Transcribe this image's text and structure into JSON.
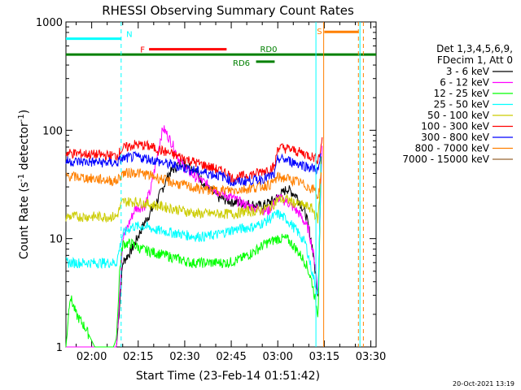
{
  "chart_data": {
    "type": "line",
    "title": "RHESSI Observing Summary Count Rates",
    "xlabel": "Start Time (23-Feb-14 01:51:42)",
    "ylabel_main": "Count Rate (s",
    "ylabel_sup1": "-1",
    "ylabel_mid": " detector",
    "ylabel_sup2": "-1",
    "ylabel_end": ")",
    "x_unit": "minutes since 00:00 UT",
    "xlim": [
      111.7,
      211.7
    ],
    "ylim": [
      1,
      1000
    ],
    "yscale": "log",
    "xticks": [
      {
        "label": "02:00",
        "value": 120
      },
      {
        "label": "02:15",
        "value": 135
      },
      {
        "label": "02:30",
        "value": 150
      },
      {
        "label": "02:45",
        "value": 165
      },
      {
        "label": "03:00",
        "value": 180
      },
      {
        "label": "03:15",
        "value": 195
      },
      {
        "label": "03:30",
        "value": 210
      }
    ],
    "yticks": [
      {
        "label": "1",
        "value": 1
      },
      {
        "label": "10",
        "value": 10
      },
      {
        "label": "100",
        "value": 100
      },
      {
        "label": "1000",
        "value": 1000
      }
    ],
    "legend_title_1": "Det 1,3,4,5,6,9,",
    "legend_title_2": "FDecim 1, Att 0",
    "legend_position": "right",
    "series": [
      {
        "name": "3 - 6 keV",
        "color": "#000000",
        "x": [
          111.7,
          128,
          130,
          133,
          137,
          141,
          145,
          149,
          153,
          157,
          161,
          165,
          170,
          175,
          180,
          183,
          186,
          189,
          191,
          193,
          194
        ],
        "y": [
          1,
          1,
          6,
          8,
          14,
          22,
          40,
          52,
          44,
          30,
          24,
          22,
          21,
          20,
          24,
          29,
          25,
          17,
          9,
          3,
          60
        ]
      },
      {
        "name": "6 - 12 keV",
        "color": "#ff00ff",
        "x": [
          111.7,
          128,
          130,
          134,
          137,
          139,
          141,
          142,
          143,
          144,
          146,
          148,
          150,
          153,
          157,
          161,
          165,
          169,
          173,
          177,
          180,
          183,
          187,
          190,
          192,
          193,
          194,
          194.5
        ],
        "y": [
          1,
          1,
          10,
          19,
          20,
          28,
          55,
          80,
          105,
          95,
          75,
          55,
          45,
          38,
          32,
          27,
          24,
          21,
          19,
          18,
          24,
          22,
          17,
          12,
          6,
          3,
          40,
          110
        ]
      },
      {
        "name": "12 - 25 keV",
        "color": "#00ff00",
        "x": [
          111.7,
          113,
          115,
          118,
          121,
          124,
          127,
          128,
          129,
          130,
          133,
          136,
          140,
          144,
          148,
          152,
          156,
          160,
          164,
          168,
          172,
          176,
          180,
          183,
          186,
          189,
          191,
          193,
          194
        ],
        "y": [
          1,
          3,
          2,
          1.5,
          1,
          1,
          1,
          1.2,
          5,
          9,
          9,
          8,
          7.5,
          7,
          6.5,
          6,
          6,
          6,
          6,
          6.5,
          7.5,
          9,
          10,
          10,
          8,
          6,
          4,
          2,
          60
        ]
      },
      {
        "name": "25 - 50 keV",
        "color": "#00ffff",
        "x": [
          111.7,
          128,
          130,
          133,
          137,
          141,
          145,
          149,
          153,
          157,
          161,
          165,
          169,
          173,
          177,
          180,
          183,
          186,
          189,
          191,
          193,
          194
        ],
        "y": [
          6,
          6,
          11,
          13,
          13,
          12,
          11.5,
          11,
          10.5,
          10.5,
          11,
          12,
          12.5,
          13,
          15,
          17,
          15,
          12,
          9,
          5,
          3,
          50
        ]
      },
      {
        "name": "50 - 100 keV",
        "color": "#cccc00",
        "x": [
          111.7,
          128,
          130,
          134,
          138,
          142,
          146,
          150,
          154,
          158,
          162,
          166,
          170,
          174,
          178,
          180,
          183,
          186,
          189,
          191,
          193,
          194
        ],
        "y": [
          16,
          16,
          22,
          22,
          21,
          20,
          19,
          18,
          17,
          17,
          17,
          17,
          18,
          18,
          20,
          23,
          23,
          21,
          20,
          19,
          15,
          45
        ]
      },
      {
        "name": "100 - 300 keV",
        "color": "#ff0000",
        "x": [
          111.7,
          128,
          130,
          134,
          138,
          142,
          146,
          150,
          154,
          158,
          162,
          164,
          165,
          166,
          169,
          173,
          177,
          179,
          180,
          183,
          187,
          190,
          192,
          193,
          194,
          194.5
        ],
        "y": [
          62,
          58,
          68,
          74,
          72,
          66,
          60,
          55,
          50,
          46,
          42,
          40,
          36,
          36,
          38,
          40,
          44,
          46,
          70,
          68,
          63,
          59,
          56,
          54,
          70,
          100
        ]
      },
      {
        "name": "300 - 800 keV",
        "color": "#0000ff",
        "x": [
          111.7,
          128,
          130,
          134,
          138,
          142,
          146,
          150,
          154,
          158,
          162,
          164,
          165,
          166,
          169,
          173,
          177,
          179,
          180,
          183,
          187,
          190,
          192,
          193,
          194
        ],
        "y": [
          52,
          50,
          55,
          57,
          55,
          51,
          48,
          45,
          42,
          40,
          38,
          36,
          33,
          33,
          34,
          35,
          37,
          39,
          55,
          53,
          49,
          46,
          44,
          42,
          60
        ]
      },
      {
        "name": "800 - 7000 keV",
        "color": "#ff8000",
        "x": [
          111.7,
          128,
          130,
          134,
          138,
          142,
          146,
          150,
          154,
          158,
          162,
          166,
          170,
          174,
          178,
          180,
          183,
          187,
          190,
          192,
          193,
          194
        ],
        "y": [
          38,
          34,
          40,
          41,
          39,
          36,
          33,
          31,
          29,
          28,
          28,
          28,
          29,
          30,
          32,
          37,
          36,
          33,
          30,
          28,
          24,
          40
        ]
      },
      {
        "name": "7000 - 15000 keV",
        "color": "#996633",
        "x": [],
        "y": []
      }
    ],
    "flags": [
      {
        "label": "N",
        "color": "#00ffff",
        "x0": 111.7,
        "x1": 129.5,
        "y": 700
      },
      {
        "label": "F",
        "color": "#ff0000",
        "x0": 138.5,
        "x1": 163.5,
        "y": 560
      },
      {
        "label": "RD0",
        "color": "#008000",
        "x0": 111.7,
        "x1": 211.7,
        "y": 500
      },
      {
        "label": "RD6",
        "color": "#008000",
        "x0": 173,
        "x1": 179,
        "y": 430
      },
      {
        "label": "S",
        "color": "#ff8000",
        "x0": 195,
        "x1": 206,
        "y": 810
      }
    ],
    "vlines": [
      {
        "color": "#00ffff",
        "x": 129.5,
        "style": "dashed"
      },
      {
        "color": "#00ffff",
        "x": 192.3,
        "style": "solid"
      },
      {
        "color": "#00ffff",
        "x": 206.5,
        "style": "solid"
      },
      {
        "color": "#ff8000",
        "x": 194.8,
        "style": "solid"
      },
      {
        "color": "#ff8000",
        "x": 206,
        "style": "dashed"
      },
      {
        "color": "#ff8000",
        "x": 207.6,
        "style": "dashed"
      }
    ]
  },
  "footer_date": "20-Oct-2021 13:19"
}
